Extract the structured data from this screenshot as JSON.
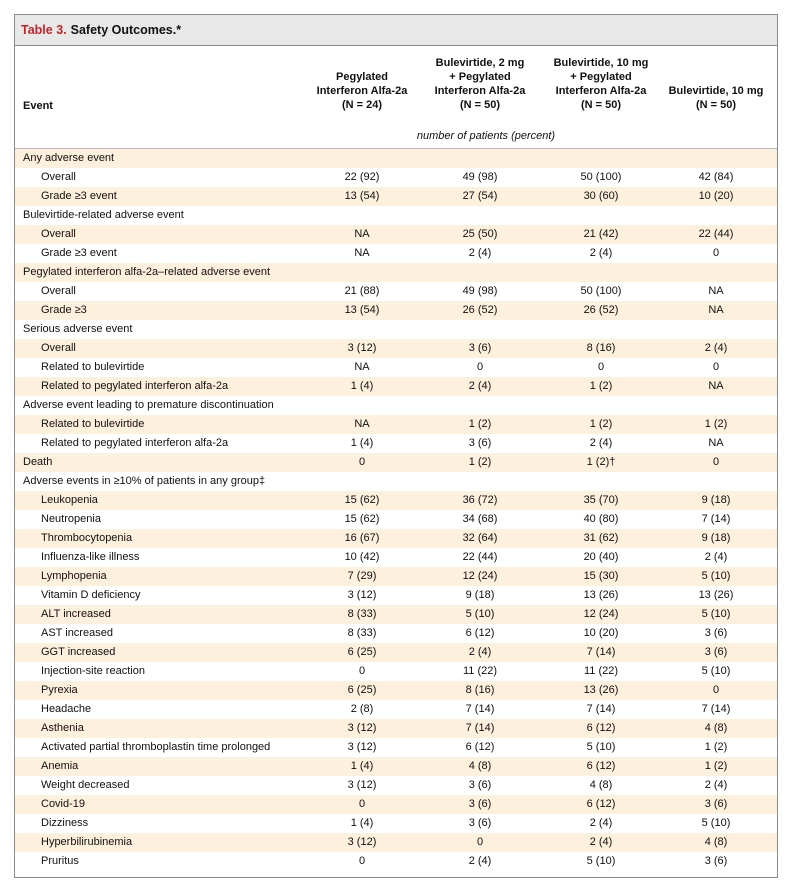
{
  "title": {
    "number": "Table 3.",
    "text": "Safety Outcomes.*"
  },
  "headers": {
    "event": "Event",
    "col1": [
      "Pegylated",
      "Interferon Alfa-2a",
      "(N = 24)"
    ],
    "col2": [
      "Bulevirtide, 2 mg",
      "+ Pegylated",
      "Interferon Alfa-2a",
      "(N = 50)"
    ],
    "col3": [
      "Bulevirtide, 10 mg",
      "+ Pegylated",
      "Interferon Alfa-2a",
      "(N = 50)"
    ],
    "col4": [
      "Bulevirtide, 10 mg",
      "(N = 50)"
    ],
    "units": "number of patients (percent)"
  },
  "rows": [
    {
      "label": "Any adverse event",
      "indent": false,
      "values": [
        "",
        "",
        "",
        ""
      ]
    },
    {
      "label": "Overall",
      "indent": true,
      "values": [
        "22 (92)",
        "49 (98)",
        "50 (100)",
        "42 (84)"
      ]
    },
    {
      "label": "Grade ≥3 event",
      "indent": true,
      "values": [
        "13 (54)",
        "27 (54)",
        "30 (60)",
        "10 (20)"
      ]
    },
    {
      "label": "Bulevirtide-related adverse event",
      "indent": false,
      "values": [
        "",
        "",
        "",
        ""
      ]
    },
    {
      "label": "Overall",
      "indent": true,
      "values": [
        "NA",
        "25 (50)",
        "21 (42)",
        "22 (44)"
      ]
    },
    {
      "label": "Grade ≥3 event",
      "indent": true,
      "values": [
        "NA",
        "2 (4)",
        "2 (4)",
        "0"
      ]
    },
    {
      "label": "Pegylated interferon alfa-2a–related adverse event",
      "indent": false,
      "values": [
        "",
        "",
        "",
        ""
      ]
    },
    {
      "label": "Overall",
      "indent": true,
      "values": [
        "21 (88)",
        "49 (98)",
        "50 (100)",
        "NA"
      ]
    },
    {
      "label": "Grade ≥3",
      "indent": true,
      "values": [
        "13 (54)",
        "26 (52)",
        "26 (52)",
        "NA"
      ]
    },
    {
      "label": "Serious adverse event",
      "indent": false,
      "values": [
        "",
        "",
        "",
        ""
      ]
    },
    {
      "label": "Overall",
      "indent": true,
      "values": [
        "3 (12)",
        "3 (6)",
        "8 (16)",
        "2 (4)"
      ]
    },
    {
      "label": "Related to bulevirtide",
      "indent": true,
      "values": [
        "NA",
        "0",
        "0",
        "0"
      ]
    },
    {
      "label": "Related to pegylated interferon alfa-2a",
      "indent": true,
      "values": [
        "1 (4)",
        "2 (4)",
        "1 (2)",
        "NA"
      ]
    },
    {
      "label": "Adverse event leading to premature discontinuation",
      "indent": false,
      "values": [
        "",
        "",
        "",
        ""
      ]
    },
    {
      "label": "Related to bulevirtide",
      "indent": true,
      "values": [
        "NA",
        "1 (2)",
        "1 (2)",
        "1 (2)"
      ]
    },
    {
      "label": "Related to pegylated interferon alfa-2a",
      "indent": true,
      "values": [
        "1 (4)",
        "3 (6)",
        "2 (4)",
        "NA"
      ]
    },
    {
      "label": "Death",
      "indent": false,
      "values": [
        "0",
        "1 (2)",
        "1 (2)†",
        "0"
      ]
    },
    {
      "label": "Adverse events in ≥10% of patients in any group‡",
      "indent": false,
      "values": [
        "",
        "",
        "",
        ""
      ]
    },
    {
      "label": "Leukopenia",
      "indent": true,
      "values": [
        "15 (62)",
        "36 (72)",
        "35 (70)",
        "9 (18)"
      ]
    },
    {
      "label": "Neutropenia",
      "indent": true,
      "values": [
        "15 (62)",
        "34 (68)",
        "40 (80)",
        "7 (14)"
      ]
    },
    {
      "label": "Thrombocytopenia",
      "indent": true,
      "values": [
        "16 (67)",
        "32 (64)",
        "31 (62)",
        "9 (18)"
      ]
    },
    {
      "label": "Influenza-like illness",
      "indent": true,
      "values": [
        "10 (42)",
        "22 (44)",
        "20 (40)",
        "2 (4)"
      ]
    },
    {
      "label": "Lymphopenia",
      "indent": true,
      "values": [
        "7 (29)",
        "12 (24)",
        "15 (30)",
        "5 (10)"
      ]
    },
    {
      "label": "Vitamin D deficiency",
      "indent": true,
      "values": [
        "3 (12)",
        "9 (18)",
        "13 (26)",
        "13 (26)"
      ]
    },
    {
      "label": "ALT increased",
      "indent": true,
      "values": [
        "8 (33)",
        "5 (10)",
        "12 (24)",
        "5 (10)"
      ]
    },
    {
      "label": "AST increased",
      "indent": true,
      "values": [
        "8 (33)",
        "6 (12)",
        "10 (20)",
        "3 (6)"
      ]
    },
    {
      "label": "GGT increased",
      "indent": true,
      "values": [
        "6 (25)",
        "2 (4)",
        "7 (14)",
        "3 (6)"
      ]
    },
    {
      "label": "Injection-site reaction",
      "indent": true,
      "values": [
        "0",
        "11 (22)",
        "11 (22)",
        "5 (10)"
      ]
    },
    {
      "label": "Pyrexia",
      "indent": true,
      "values": [
        "6 (25)",
        "8 (16)",
        "13 (26)",
        "0"
      ]
    },
    {
      "label": "Headache",
      "indent": true,
      "values": [
        "2 (8)",
        "7 (14)",
        "7 (14)",
        "7 (14)"
      ]
    },
    {
      "label": "Asthenia",
      "indent": true,
      "values": [
        "3 (12)",
        "7 (14)",
        "6 (12)",
        "4 (8)"
      ]
    },
    {
      "label": "Activated partial thromboplastin time prolonged",
      "indent": true,
      "values": [
        "3 (12)",
        "6 (12)",
        "5 (10)",
        "1 (2)"
      ]
    },
    {
      "label": "Anemia",
      "indent": true,
      "values": [
        "1 (4)",
        "4 (8)",
        "6 (12)",
        "1 (2)"
      ]
    },
    {
      "label": "Weight decreased",
      "indent": true,
      "values": [
        "3 (12)",
        "3 (6)",
        "4 (8)",
        "2 (4)"
      ]
    },
    {
      "label": "Covid-19",
      "indent": true,
      "values": [
        "0",
        "3 (6)",
        "6 (12)",
        "3 (6)"
      ]
    },
    {
      "label": "Dizziness",
      "indent": true,
      "values": [
        "1 (4)",
        "3 (6)",
        "2 (4)",
        "5 (10)"
      ]
    },
    {
      "label": "Hyperbilirubinemia",
      "indent": true,
      "values": [
        "3 (12)",
        "0",
        "2 (4)",
        "4 (8)"
      ]
    },
    {
      "label": "Pruritus",
      "indent": true,
      "values": [
        "0",
        "2 (4)",
        "5 (10)",
        "3 (6)"
      ]
    }
  ]
}
